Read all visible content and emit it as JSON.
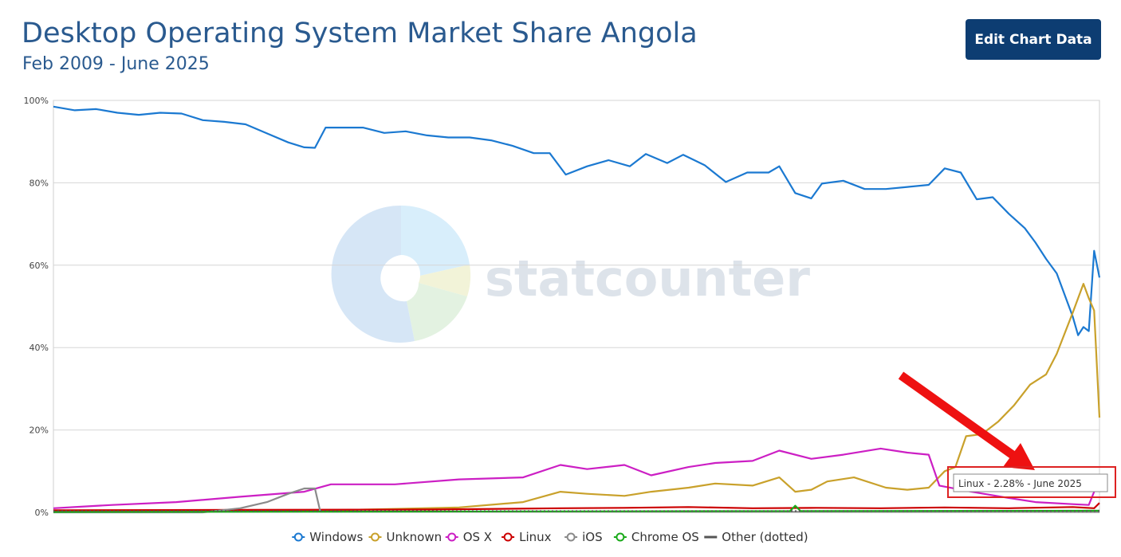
{
  "page": {
    "title": "Desktop Operating System Market Share Angola",
    "subtitle": "Feb 2009 - June 2025",
    "edit_button_label": "Edit Chart Data",
    "watermark": "statcounter",
    "tooltip": "Linux - 2.28% - June 2025"
  },
  "colors": {
    "title": "#2a5a8f",
    "button": "#0d3d72",
    "Windows": "#1b79d1",
    "Unknown": "#c9a12b",
    "OS X": "#cc1fc4",
    "Linux": "#cc0000",
    "iOS": "#8a8a8a",
    "Chrome OS": "#1aaa1a",
    "Other (dotted)": "#555555",
    "annotation": "#ee1111"
  },
  "chart_data": {
    "type": "line",
    "title": "Desktop Operating System Market Share Angola",
    "subtitle": "Feb 2009 - June 2025",
    "x_start": "2009-02",
    "x_end": "2025-06",
    "ylim": [
      0,
      100
    ],
    "y_ticks": [
      "0%",
      "20%",
      "40%",
      "60%",
      "80%",
      "100%"
    ],
    "grid": true,
    "legend_position": "bottom",
    "series": [
      {
        "name": "Windows",
        "points": [
          [
            "2009-02",
            98.5
          ],
          [
            "2009-06",
            97.6
          ],
          [
            "2009-10",
            97.9
          ],
          [
            "2010-02",
            97.0
          ],
          [
            "2010-06",
            96.5
          ],
          [
            "2010-10",
            97.0
          ],
          [
            "2011-02",
            96.8
          ],
          [
            "2011-06",
            95.2
          ],
          [
            "2011-10",
            94.8
          ],
          [
            "2012-02",
            94.2
          ],
          [
            "2012-06",
            92.0
          ],
          [
            "2012-10",
            89.8
          ],
          [
            "2013-01",
            88.6
          ],
          [
            "2013-03",
            88.5
          ],
          [
            "2013-05",
            93.4
          ],
          [
            "2013-08",
            93.4
          ],
          [
            "2013-12",
            93.4
          ],
          [
            "2014-04",
            92.1
          ],
          [
            "2014-08",
            92.5
          ],
          [
            "2014-12",
            91.5
          ],
          [
            "2015-04",
            91.0
          ],
          [
            "2015-08",
            91.0
          ],
          [
            "2015-12",
            90.3
          ],
          [
            "2016-04",
            89.0
          ],
          [
            "2016-08",
            87.2
          ],
          [
            "2016-11",
            87.2
          ],
          [
            "2017-02",
            82.0
          ],
          [
            "2017-06",
            84.0
          ],
          [
            "2017-10",
            85.5
          ],
          [
            "2018-02",
            84.0
          ],
          [
            "2018-05",
            87.0
          ],
          [
            "2018-09",
            84.8
          ],
          [
            "2018-12",
            86.8
          ],
          [
            "2019-04",
            84.3
          ],
          [
            "2019-08",
            80.2
          ],
          [
            "2019-12",
            82.5
          ],
          [
            "2020-04",
            82.5
          ],
          [
            "2020-06",
            84.0
          ],
          [
            "2020-09",
            77.5
          ],
          [
            "2020-12",
            76.2
          ],
          [
            "2021-02",
            79.8
          ],
          [
            "2021-06",
            80.5
          ],
          [
            "2021-10",
            78.5
          ],
          [
            "2022-02",
            78.5
          ],
          [
            "2022-06",
            79.0
          ],
          [
            "2022-10",
            79.5
          ],
          [
            "2023-01",
            83.5
          ],
          [
            "2023-04",
            82.5
          ],
          [
            "2023-07",
            76.0
          ],
          [
            "2023-10",
            76.5
          ],
          [
            "2024-01",
            72.5
          ],
          [
            "2024-04",
            69.0
          ],
          [
            "2024-06",
            65.5
          ],
          [
            "2024-08",
            61.5
          ],
          [
            "2024-10",
            58.0
          ],
          [
            "2025-01",
            47.5
          ],
          [
            "2025-02",
            43.0
          ],
          [
            "2025-03",
            45.0
          ],
          [
            "2025-04",
            44.0
          ],
          [
            "2025-05",
            63.5
          ],
          [
            "2025-06",
            57.0
          ]
        ]
      },
      {
        "name": "Unknown",
        "points": [
          [
            "2009-02",
            0.2
          ],
          [
            "2011-01",
            0.3
          ],
          [
            "2013-06",
            0.5
          ],
          [
            "2015-06",
            1.2
          ],
          [
            "2016-06",
            2.5
          ],
          [
            "2017-01",
            5.0
          ],
          [
            "2017-06",
            4.5
          ],
          [
            "2018-01",
            4.0
          ],
          [
            "2018-06",
            5.0
          ],
          [
            "2019-01",
            6.0
          ],
          [
            "2019-06",
            7.0
          ],
          [
            "2020-01",
            6.5
          ],
          [
            "2020-06",
            8.5
          ],
          [
            "2020-09",
            5.0
          ],
          [
            "2020-12",
            5.5
          ],
          [
            "2021-03",
            7.5
          ],
          [
            "2021-08",
            8.5
          ],
          [
            "2022-02",
            6.0
          ],
          [
            "2022-06",
            5.5
          ],
          [
            "2022-10",
            6.0
          ],
          [
            "2023-01",
            10.0
          ],
          [
            "2023-03",
            11.0
          ],
          [
            "2023-05",
            18.5
          ],
          [
            "2023-08",
            19.0
          ],
          [
            "2023-11",
            22.0
          ],
          [
            "2024-02",
            26.0
          ],
          [
            "2024-05",
            31.0
          ],
          [
            "2024-08",
            33.5
          ],
          [
            "2024-10",
            38.5
          ],
          [
            "2025-01",
            48.5
          ],
          [
            "2025-03",
            55.5
          ],
          [
            "2025-04",
            52.0
          ],
          [
            "2025-05",
            49.0
          ],
          [
            "2025-06",
            23.0
          ]
        ]
      },
      {
        "name": "OS X",
        "points": [
          [
            "2009-02",
            1.0
          ],
          [
            "2010-01",
            1.8
          ],
          [
            "2011-01",
            2.5
          ],
          [
            "2012-01",
            3.8
          ],
          [
            "2013-01",
            5.0
          ],
          [
            "2013-06",
            6.8
          ],
          [
            "2014-06",
            6.8
          ],
          [
            "2015-06",
            8.0
          ],
          [
            "2016-06",
            8.5
          ],
          [
            "2017-01",
            11.5
          ],
          [
            "2017-06",
            10.5
          ],
          [
            "2018-01",
            11.5
          ],
          [
            "2018-06",
            9.0
          ],
          [
            "2019-01",
            11.0
          ],
          [
            "2019-06",
            12.0
          ],
          [
            "2020-01",
            12.5
          ],
          [
            "2020-06",
            15.0
          ],
          [
            "2020-12",
            13.0
          ],
          [
            "2021-06",
            14.0
          ],
          [
            "2022-01",
            15.5
          ],
          [
            "2022-06",
            14.5
          ],
          [
            "2022-10",
            14.0
          ],
          [
            "2022-12",
            6.5
          ],
          [
            "2023-06",
            5.0
          ],
          [
            "2024-01",
            3.5
          ],
          [
            "2024-06",
            2.5
          ],
          [
            "2025-01",
            2.0
          ],
          [
            "2025-04",
            1.8
          ],
          [
            "2025-05",
            5.0
          ],
          [
            "2025-06",
            6.5
          ]
        ]
      },
      {
        "name": "Linux",
        "points": [
          [
            "2009-02",
            0.5
          ],
          [
            "2012-01",
            0.6
          ],
          [
            "2015-01",
            0.7
          ],
          [
            "2017-01",
            1.0
          ],
          [
            "2018-01",
            1.1
          ],
          [
            "2019-01",
            1.3
          ],
          [
            "2020-01",
            1.0
          ],
          [
            "2021-01",
            1.1
          ],
          [
            "2022-01",
            1.0
          ],
          [
            "2023-01",
            1.2
          ],
          [
            "2024-01",
            1.0
          ],
          [
            "2025-01",
            1.3
          ],
          [
            "2025-05",
            1.0
          ],
          [
            "2025-06",
            2.28
          ]
        ]
      },
      {
        "name": "iOS",
        "points": [
          [
            "2009-02",
            0.0
          ],
          [
            "2011-06",
            0.0
          ],
          [
            "2012-01",
            1.0
          ],
          [
            "2012-06",
            2.5
          ],
          [
            "2012-10",
            4.5
          ],
          [
            "2013-01",
            5.8
          ],
          [
            "2013-03",
            5.8
          ],
          [
            "2013-04",
            0.2
          ],
          [
            "2025-06",
            0.1
          ]
        ]
      },
      {
        "name": "Chrome OS",
        "points": [
          [
            "2009-02",
            0.1
          ],
          [
            "2020-08",
            0.3
          ],
          [
            "2020-09",
            1.6
          ],
          [
            "2020-10",
            0.3
          ],
          [
            "2025-06",
            0.4
          ]
        ]
      },
      {
        "name": "Other (dotted)",
        "points": [
          [
            "2009-02",
            0.3
          ],
          [
            "2025-06",
            0.3
          ]
        ]
      }
    ]
  }
}
